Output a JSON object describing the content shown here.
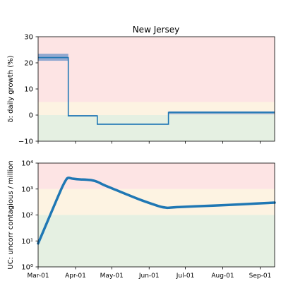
{
  "title": "New Jersey",
  "colors": {
    "series": "#1f77b4",
    "band": "#3a78c0",
    "zone_red": "#fde4e4",
    "zone_yellow": "#fdf3e2",
    "zone_green": "#e5f0e2",
    "axis": "#000000"
  },
  "chart_data": [
    {
      "type": "line",
      "title": "New Jersey",
      "xlabel": "",
      "ylabel": "δ: daily growth (%)",
      "ylim": [
        -10,
        30
      ],
      "y_ticks": [
        "30",
        "20",
        "10",
        "0",
        "−10"
      ],
      "y_tick_values": [
        30,
        20,
        10,
        0,
        -10
      ],
      "x_ticks": [
        "Mar-01",
        "Apr-01",
        "May-01",
        "Jun-01",
        "Jul-01",
        "Aug-01",
        "Sep-01"
      ],
      "x_tick_days": [
        0,
        31,
        61,
        92,
        122,
        153,
        184
      ],
      "xlim_days": [
        0,
        196
      ],
      "zones": [
        {
          "from": 5,
          "to": 30,
          "color": "red"
        },
        {
          "from": 0,
          "to": 5,
          "color": "yellow"
        },
        {
          "from": -10,
          "to": 0,
          "color": "green"
        }
      ],
      "series": [
        {
          "step": [
            {
              "start_day": 0,
              "end_day": 25,
              "value": 22.0,
              "band": [
                20.8,
                23.5
              ]
            },
            {
              "start_day": 25,
              "end_day": 49,
              "value": -0.3,
              "band": [
                -0.5,
                0.0
              ]
            },
            {
              "start_day": 49,
              "end_day": 108,
              "value": -3.5,
              "band": [
                -3.7,
                -3.3
              ]
            },
            {
              "start_day": 108,
              "end_day": 196,
              "value": 1.0,
              "band": [
                0.3,
                1.5
              ]
            }
          ]
        }
      ]
    },
    {
      "type": "line",
      "title": "",
      "xlabel": "",
      "ylabel": "UC: uncorr contagious / million",
      "y_scale": "log",
      "ylim": [
        1,
        10000
      ],
      "y_ticks": [
        "10⁴",
        "10³",
        "10²",
        "10¹",
        "10⁰"
      ],
      "y_tick_values": [
        10000,
        1000,
        100,
        10,
        1
      ],
      "x_ticks": [
        "Mar-01",
        "Apr-01",
        "May-01",
        "Jun-01",
        "Jul-01",
        "Aug-01",
        "Sep-01"
      ],
      "x_tick_days": [
        0,
        31,
        61,
        92,
        122,
        153,
        184
      ],
      "xlim_days": [
        0,
        196
      ],
      "zones": [
        {
          "from": 1000,
          "to": 10000,
          "color": "red"
        },
        {
          "from": 100,
          "to": 1000,
          "color": "yellow"
        },
        {
          "from": 1,
          "to": 100,
          "color": "green"
        }
      ],
      "series": [
        {
          "points": [
            [
              0,
              8
            ],
            [
              5,
              28
            ],
            [
              10,
              100
            ],
            [
              15,
              350
            ],
            [
              20,
              1200
            ],
            [
              23,
              2200
            ],
            [
              25,
              2700
            ],
            [
              29,
              2500
            ],
            [
              35,
              2350
            ],
            [
              40,
              2300
            ],
            [
              45,
              2150
            ],
            [
              49,
              1900
            ],
            [
              55,
              1400
            ],
            [
              65,
              900
            ],
            [
              75,
              580
            ],
            [
              85,
              380
            ],
            [
              95,
              260
            ],
            [
              102,
              205
            ],
            [
              106,
              192
            ],
            [
              108,
              190
            ],
            [
              115,
              200
            ],
            [
              130,
              215
            ],
            [
              150,
              235
            ],
            [
              170,
              260
            ],
            [
              196,
              300
            ]
          ]
        }
      ]
    }
  ]
}
